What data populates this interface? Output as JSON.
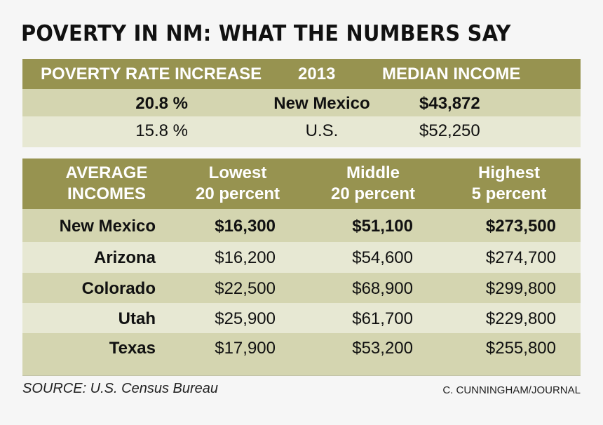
{
  "title": "POVERTY IN NM: WHAT THE NUMBERS SAY",
  "summary": {
    "headers": [
      "POVERTY RATE INCREASE",
      "2013",
      "MEDIAN INCOME"
    ],
    "rows": [
      {
        "rate": "20.8 %",
        "area": "New Mexico",
        "income": "$43,872",
        "bold": true
      },
      {
        "rate": "15.8 %",
        "area": "U.S.",
        "income": "$52,250",
        "bold": false
      }
    ]
  },
  "incomes": {
    "headers": [
      {
        "line1": "AVERAGE",
        "line2": "INCOMES"
      },
      {
        "line1": "Lowest",
        "line2": "20 percent"
      },
      {
        "line1": "Middle",
        "line2": "20 percent"
      },
      {
        "line1": "Highest",
        "line2": "5 percent"
      }
    ],
    "rows": [
      {
        "state": "New Mexico",
        "lowest": "$16,300",
        "middle": "$51,100",
        "highest": "$273,500",
        "bold": true
      },
      {
        "state": "Arizona",
        "lowest": "$16,200",
        "middle": "$54,600",
        "highest": "$274,700",
        "bold": false
      },
      {
        "state": "Colorado",
        "lowest": "$22,500",
        "middle": "$68,900",
        "highest": "$299,800",
        "bold": false
      },
      {
        "state": "Utah",
        "lowest": "$25,900",
        "middle": "$61,700",
        "highest": "$229,800",
        "bold": false
      },
      {
        "state": "Texas",
        "lowest": "$17,900",
        "middle": "$53,200",
        "highest": "$255,800",
        "bold": false
      }
    ]
  },
  "source": "SOURCE: U.S. Census Bureau",
  "credit": "C. CUNNINGHAM/JOURNAL",
  "colors": {
    "header": "#979350",
    "row_dark": "#d4d5b0",
    "row_light": "#e7e8d3",
    "background": "#f6f6f6"
  }
}
